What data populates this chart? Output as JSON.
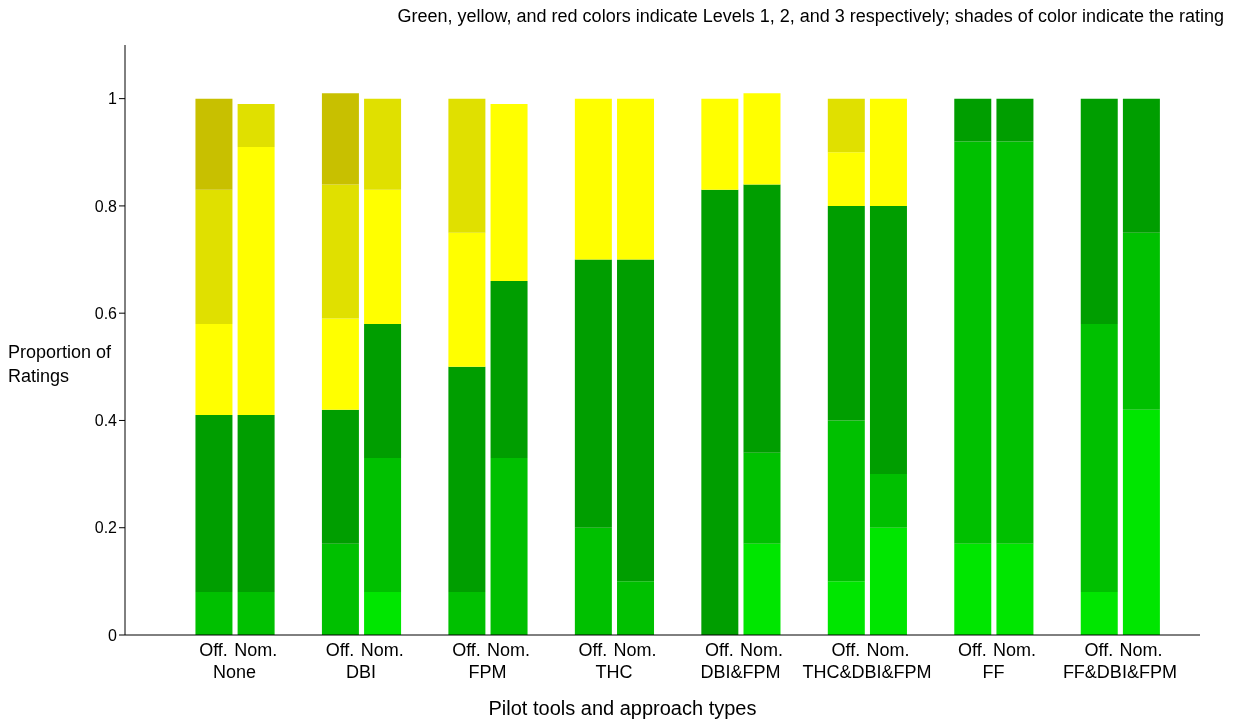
{
  "chart_data": {
    "type": "bar",
    "stacked": true,
    "title": "Green, yellow, and red colors indicate Levels 1, 2, and 3 respectively;  shades of color indicate the rating",
    "xlabel": "Pilot tools and approach types",
    "ylabel": "Proportion of Ratings",
    "categories": [
      "Off.",
      "Nom.",
      "Off.",
      "Nom.",
      "Off.",
      "Nom.",
      "Off.",
      "Nom.",
      "Off.",
      "Nom.",
      "Off.",
      "Nom.",
      "Off.",
      "Nom.",
      "Off.",
      "Nom."
    ],
    "annotations": [
      "None",
      "DBI",
      "FPM",
      "THC",
      "DBI&FPM",
      "THC&DBI&FPM",
      "FF",
      "FF&DBI&FPM"
    ],
    "series": [
      {
        "color": "#00e600",
        "values": [
          0,
          0,
          0,
          0.08,
          0,
          0,
          0,
          0,
          0,
          0.17,
          0.1,
          0.2,
          0.17,
          0.17,
          0.08,
          0.42
        ]
      },
      {
        "color": "#00c000",
        "values": [
          0.08,
          0.08,
          0.17,
          0.25,
          0.08,
          0.33,
          0.2,
          0.1,
          0,
          0.17,
          0.3,
          0.1,
          0.75,
          0.75,
          0.5,
          0.33
        ]
      },
      {
        "color": "#009e00",
        "values": [
          0.33,
          0.33,
          0.25,
          0.25,
          0.42,
          0.33,
          0.5,
          0.6,
          0.83,
          0.5,
          0.4,
          0.5,
          0.08,
          0.08,
          0.42,
          0.25
        ]
      },
      {
        "color": "#ffff00",
        "values": [
          0.17,
          0.5,
          0.17,
          0.25,
          0.25,
          0.33,
          0.3,
          0.3,
          0.17,
          0.17,
          0.1,
          0.2,
          0,
          0,
          0,
          0
        ]
      },
      {
        "color": "#e0e000",
        "values": [
          0.25,
          0.08,
          0.25,
          0.17,
          0.25,
          0,
          0,
          0,
          0,
          0,
          0.1,
          0,
          0,
          0,
          0,
          0
        ]
      },
      {
        "color": "#c8c000",
        "values": [
          0.17,
          0,
          0.17,
          0,
          0,
          0,
          0,
          0,
          0,
          0,
          0,
          0,
          0,
          0,
          0,
          0
        ]
      }
    ],
    "ylim": [
      0,
      1.1
    ],
    "yticks": [
      0,
      0.2,
      0.4,
      0.6,
      0.8,
      1
    ],
    "grid": false,
    "legend": false
  }
}
